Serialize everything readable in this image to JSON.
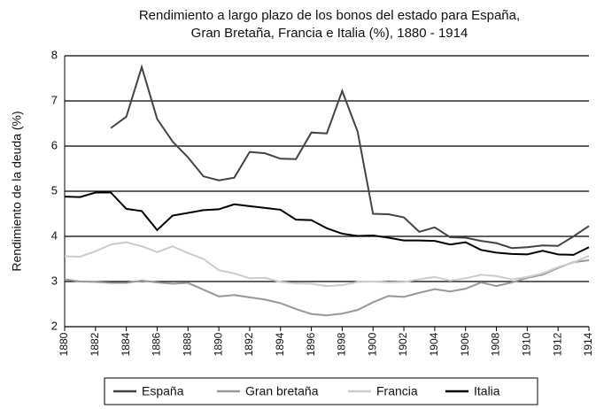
{
  "chart_data": {
    "type": "line",
    "title": [
      "Rendimiento a largo plazo de los bonos del estado para España,",
      "Gran Bretaña, Francia e Italia (%), 1880 - 1914"
    ],
    "y_label": "Rendimiento de la deuda (%)",
    "x": [
      1880,
      1881,
      1882,
      1883,
      1884,
      1885,
      1886,
      1887,
      1888,
      1889,
      1890,
      1891,
      1892,
      1893,
      1894,
      1895,
      1896,
      1897,
      1898,
      1899,
      1900,
      1901,
      1902,
      1903,
      1904,
      1905,
      1906,
      1907,
      1908,
      1909,
      1910,
      1911,
      1912,
      1913,
      1914
    ],
    "xlim": [
      1880,
      1914
    ],
    "xticks": [
      1880,
      1882,
      1884,
      1886,
      1888,
      1890,
      1892,
      1894,
      1896,
      1898,
      1900,
      1902,
      1904,
      1906,
      1908,
      1910,
      1912,
      1914
    ],
    "ylim": [
      2,
      8
    ],
    "yticks": [
      2,
      3,
      4,
      5,
      6,
      7,
      8
    ],
    "grid": true,
    "legend": "bottom",
    "series": [
      {
        "name": "España",
        "color": "#444444",
        "values": [
          null,
          null,
          null,
          6.4,
          6.65,
          7.75,
          6.6,
          6.1,
          5.75,
          5.33,
          5.24,
          5.3,
          5.87,
          5.84,
          5.72,
          5.71,
          6.3,
          6.28,
          7.22,
          6.32,
          4.5,
          4.49,
          4.42,
          4.1,
          4.2,
          3.98,
          3.97,
          3.9,
          3.85,
          3.74,
          3.76,
          3.8,
          3.79,
          4.0,
          4.23
        ]
      },
      {
        "name": "Gran bretaña",
        "color": "#999999",
        "values": [
          3.05,
          3.0,
          2.99,
          2.97,
          2.97,
          3.02,
          2.98,
          2.95,
          2.97,
          2.82,
          2.67,
          2.7,
          2.65,
          2.6,
          2.52,
          2.39,
          2.28,
          2.25,
          2.29,
          2.37,
          2.54,
          2.68,
          2.66,
          2.75,
          2.83,
          2.78,
          2.84,
          2.98,
          2.9,
          2.98,
          3.08,
          3.15,
          3.3,
          3.43,
          3.47
        ]
      },
      {
        "name": "Francia",
        "color": "#cccccc",
        "values": [
          3.56,
          3.55,
          3.67,
          3.82,
          3.87,
          3.78,
          3.65,
          3.78,
          3.63,
          3.5,
          3.25,
          3.18,
          3.07,
          3.08,
          2.99,
          2.96,
          2.95,
          2.9,
          2.92,
          2.99,
          3.0,
          2.98,
          2.99,
          3.05,
          3.1,
          3.02,
          3.07,
          3.15,
          3.12,
          3.05,
          3.1,
          3.18,
          3.32,
          3.42,
          3.57
        ]
      },
      {
        "name": "Italia",
        "color": "#000000",
        "values": [
          4.88,
          4.87,
          4.97,
          4.97,
          4.61,
          4.56,
          4.14,
          4.46,
          4.52,
          4.58,
          4.6,
          4.71,
          4.67,
          4.63,
          4.59,
          4.37,
          4.36,
          4.18,
          4.06,
          4.01,
          4.02,
          3.97,
          3.91,
          3.91,
          3.9,
          3.82,
          3.87,
          3.7,
          3.64,
          3.61,
          3.6,
          3.68,
          3.6,
          3.59,
          3.76
        ]
      }
    ]
  }
}
